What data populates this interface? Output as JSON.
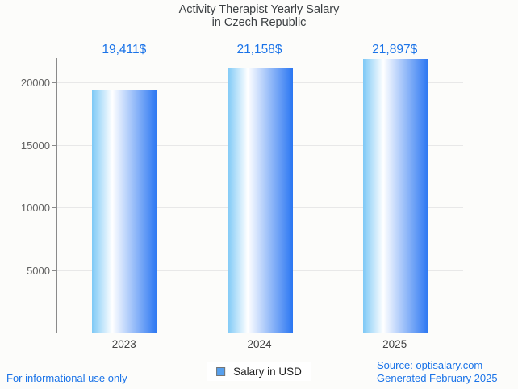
{
  "page": {
    "background_color": "#fcfcfa",
    "accent_color": "#1a73e8"
  },
  "header": {
    "title_line1": "Activity Therapist Yearly Salary",
    "title_line2": "in Czech Republic"
  },
  "chart_data": {
    "type": "bar",
    "title": "Activity Therapist Yearly Salary in Czech Republic",
    "categories": [
      "2023",
      "2024",
      "2025"
    ],
    "series": [
      {
        "name": "Salary in USD",
        "values": [
          19411,
          21158,
          21897
        ]
      }
    ],
    "value_labels": [
      "19,411$",
      "21,158$",
      "21,897$"
    ],
    "xlabel": "",
    "ylabel": "",
    "ylim": [
      0,
      21960
    ],
    "yticks": [
      5000,
      10000,
      15000,
      20000
    ],
    "grid": true,
    "legend_position": "bottom",
    "bar_gradient": [
      "#7ec9f6",
      "#ffffff",
      "#2a76f2"
    ],
    "gradient_white_stop_pct": 31,
    "value_label_color": "#1a73e8",
    "axis_color": "#8a8a8a",
    "gridline_color": "#e8e8e8",
    "tick_label_color": "#616161",
    "category_label_color": "#424242"
  },
  "legend": {
    "label": "Salary in USD",
    "marker_color": "#57a0ee",
    "marker_border_color": "#757575"
  },
  "footer": {
    "left_note": "For informational use only",
    "source_line1": "Source: optisalary.com",
    "source_line2": "Generated February 2025"
  }
}
